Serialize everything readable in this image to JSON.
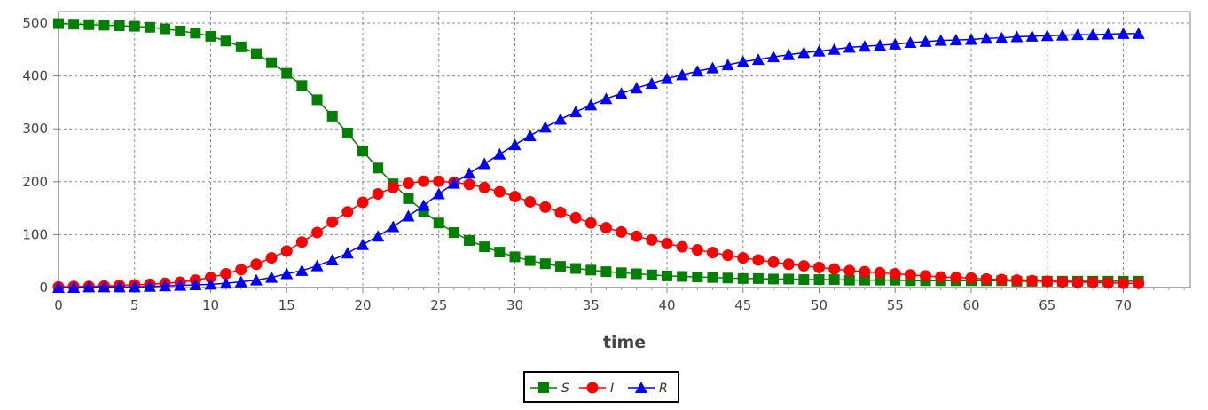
{
  "chart_data": {
    "type": "line",
    "title": "",
    "xlabel": "time",
    "ylabel": "",
    "xlim": [
      0,
      75
    ],
    "ylim": [
      0,
      500
    ],
    "xticks": [
      0,
      5,
      10,
      15,
      20,
      25,
      30,
      35,
      40,
      45,
      50,
      55,
      60,
      65,
      70
    ],
    "yticks": [
      0,
      100,
      200,
      300,
      400,
      500
    ],
    "grid": true,
    "legend_position": "bottom-center",
    "x": [
      0,
      1,
      2,
      3,
      4,
      5,
      6,
      7,
      8,
      9,
      10,
      11,
      12,
      13,
      14,
      15,
      16,
      17,
      18,
      19,
      20,
      21,
      22,
      23,
      24,
      25,
      26,
      27,
      28,
      29,
      30,
      31,
      32,
      33,
      34,
      35,
      36,
      37,
      38,
      39,
      40,
      41,
      42,
      43,
      44,
      45,
      46,
      47,
      48,
      49,
      50,
      51,
      52,
      53,
      54,
      55,
      56,
      57,
      58,
      59,
      60,
      61,
      62,
      63,
      64,
      65,
      66,
      67,
      68,
      69,
      70,
      71
    ],
    "series": [
      {
        "name": "S",
        "color": "#008000",
        "marker": "square",
        "values": [
          499,
          498,
          497,
          496,
          495,
          494,
          492,
          489,
          485,
          481,
          475,
          466,
          455,
          442,
          425,
          405,
          382,
          355,
          324,
          292,
          258,
          226,
          196,
          168,
          144,
          122,
          104,
          89,
          77,
          67,
          58,
          51,
          45,
          40,
          36,
          33,
          30,
          28,
          26,
          24,
          22,
          21,
          20,
          19,
          18,
          17,
          17,
          16,
          16,
          15,
          15,
          15,
          14,
          14,
          14,
          14,
          13,
          13,
          13,
          13,
          13,
          13,
          13,
          12,
          12,
          12,
          12,
          12,
          12,
          12,
          12,
          12
        ]
      },
      {
        "name": "I",
        "color": "#ff0000",
        "marker": "circle",
        "values": [
          1,
          2,
          2,
          3,
          4,
          5,
          6,
          8,
          10,
          14,
          19,
          26,
          34,
          44,
          56,
          69,
          86,
          104,
          124,
          143,
          161,
          177,
          189,
          197,
          201,
          201,
          199,
          195,
          189,
          181,
          172,
          162,
          152,
          142,
          132,
          122,
          113,
          105,
          97,
          90,
          83,
          77,
          71,
          66,
          61,
          56,
          52,
          48,
          44,
          41,
          38,
          35,
          32,
          30,
          28,
          26,
          24,
          22,
          20,
          19,
          18,
          16,
          15,
          14,
          13,
          12,
          11,
          10,
          10,
          9,
          8,
          8
        ]
      },
      {
        "name": "R",
        "color": "#0000ff",
        "marker": "triangle",
        "values": [
          0,
          0,
          1,
          1,
          1,
          1,
          2,
          3,
          4,
          5,
          6,
          8,
          11,
          14,
          19,
          26,
          32,
          41,
          52,
          65,
          81,
          97,
          115,
          135,
          155,
          177,
          197,
          216,
          234,
          252,
          270,
          287,
          303,
          318,
          332,
          345,
          357,
          367,
          377,
          386,
          395,
          402,
          409,
          415,
          421,
          427,
          431,
          436,
          440,
          444,
          447,
          450,
          454,
          456,
          458,
          460,
          463,
          465,
          467,
          468,
          469,
          471,
          472,
          474,
          475,
          476,
          477,
          478,
          478,
          479,
          480,
          480
        ]
      }
    ]
  }
}
